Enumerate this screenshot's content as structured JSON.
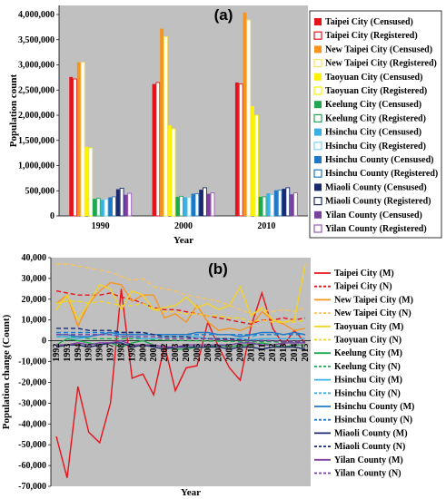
{
  "chart_data": [
    {
      "type": "bar",
      "title": "(a)",
      "xlabel": "Year",
      "ylabel": "Population count",
      "ylim": [
        0,
        4000000
      ],
      "yticks": [
        "0",
        "500,000",
        "1,000,000",
        "1,500,000",
        "2,000,000",
        "2,500,000",
        "3,000,000",
        "3,500,000",
        "4,000,000"
      ],
      "categories": [
        "1990",
        "2000",
        "2010"
      ],
      "grid": false,
      "legend": "right",
      "series": [
        {
          "name": "Taipei City (Censused)",
          "color": "#e8121a",
          "hollow": false,
          "values": [
            2760000,
            2620000,
            2650000
          ]
        },
        {
          "name": "Taipei City (Registered)",
          "color": "#e8121a",
          "hollow": true,
          "values": [
            2720000,
            2650000,
            2620000
          ]
        },
        {
          "name": "New Taipei City (Censused)",
          "color": "#f7941d",
          "hollow": false,
          "values": [
            3050000,
            3720000,
            4040000
          ]
        },
        {
          "name": "New Taipei City (Registered)",
          "color": "#fde15a",
          "hollow": true,
          "values": [
            3050000,
            3560000,
            3890000
          ]
        },
        {
          "name": "Taoyuan City (Censused)",
          "color": "#fff200",
          "hollow": false,
          "values": [
            1370000,
            1800000,
            2180000
          ]
        },
        {
          "name": "Taoyuan City (Registered)",
          "color": "#f2f200",
          "hollow": true,
          "values": [
            1350000,
            1730000,
            2000000
          ]
        },
        {
          "name": "Keelung City (Censused)",
          "color": "#1ea850",
          "hollow": false,
          "values": [
            340000,
            380000,
            380000
          ]
        },
        {
          "name": "Keelung City (Registered)",
          "color": "#1ea850",
          "hollow": true,
          "values": [
            350000,
            390000,
            380000
          ]
        },
        {
          "name": "Hsinchu City (Censused)",
          "color": "#3ab0e4",
          "hollow": false,
          "values": [
            320000,
            370000,
            450000
          ]
        },
        {
          "name": "Hsinchu City (Registered)",
          "color": "#7fd3f7",
          "hollow": true,
          "values": [
            330000,
            370000,
            420000
          ]
        },
        {
          "name": "Hsinchu County (Censused)",
          "color": "#1f78c8",
          "hollow": false,
          "values": [
            370000,
            440000,
            510000
          ]
        },
        {
          "name": "Hsinchu County (Registered)",
          "color": "#1f78c8",
          "hollow": true,
          "values": [
            380000,
            440000,
            510000
          ]
        },
        {
          "name": "Miaoli County (Censused)",
          "color": "#1a2a6c",
          "hollow": false,
          "values": [
            530000,
            520000,
            540000
          ]
        },
        {
          "name": "Miaoli County (Registered)",
          "color": "#1a2a6c",
          "hollow": true,
          "values": [
            550000,
            560000,
            560000
          ]
        },
        {
          "name": "Yilan County (Censused)",
          "color": "#7b3fa0",
          "hollow": false,
          "values": [
            420000,
            440000,
            430000
          ]
        },
        {
          "name": "Yilan County (Registered)",
          "color": "#9b59b6",
          "hollow": true,
          "values": [
            450000,
            460000,
            460000
          ]
        }
      ]
    },
    {
      "type": "line",
      "title": "(b)",
      "xlabel": "Year",
      "ylabel": "Population change (Count)",
      "ylim": [
        -70000,
        40000
      ],
      "yticks": [
        "-70,000",
        "-60,000",
        "-50,000",
        "-40,000",
        "-30,000",
        "-20,000",
        "-10,000",
        "0",
        "10,000",
        "20,000",
        "30,000",
        "40,000"
      ],
      "x": [
        "1992",
        "1993",
        "1994",
        "1995",
        "1996",
        "1997",
        "1998",
        "1999",
        "2000",
        "2001",
        "2002",
        "2003",
        "2004",
        "2005",
        "2006",
        "2007",
        "2008",
        "2009",
        "2010",
        "2011",
        "2012",
        "2013",
        "2014",
        "2015"
      ],
      "grid": false,
      "legend": "right",
      "series": [
        {
          "name": "Taipei City (M)",
          "color": "#e8121a",
          "dash": false,
          "values": [
            -46000,
            -66000,
            -22000,
            -44000,
            -49000,
            -30000,
            25000,
            -18000,
            -16000,
            -26000,
            -2000,
            -24000,
            -13000,
            -12000,
            9000,
            -3000,
            -13000,
            -19000,
            7000,
            23000,
            6000,
            -2000,
            5000,
            -1000
          ]
        },
        {
          "name": "Taipei City (N)",
          "color": "#e8121a",
          "dash": true,
          "values": [
            24000,
            23000,
            22000,
            22000,
            22000,
            23000,
            21000,
            20000,
            18000,
            16000,
            15000,
            15000,
            14000,
            13000,
            12000,
            11000,
            10000,
            9000,
            8000,
            10000,
            10000,
            11000,
            10000,
            11000
          ]
        },
        {
          "name": "New Taipei City (M)",
          "color": "#f7941d",
          "dash": false,
          "values": [
            18000,
            22000,
            7000,
            18000,
            24000,
            28000,
            27000,
            19000,
            22000,
            22000,
            11000,
            13000,
            9000,
            17000,
            9000,
            5000,
            6000,
            5000,
            7000,
            14000,
            10000,
            8000,
            5000,
            6000
          ]
        },
        {
          "name": "New Taipei City (N)",
          "color": "#f7c35a",
          "dash": true,
          "values": [
            37000,
            37000,
            36000,
            35000,
            34000,
            33000,
            31000,
            29000,
            30000,
            26000,
            25000,
            24000,
            22000,
            21000,
            20000,
            19000,
            17000,
            15000,
            13000,
            15000,
            14000,
            15000,
            14000,
            16000
          ]
        },
        {
          "name": "Taoyuan City (M)",
          "color": "#f3d324",
          "dash": false,
          "values": [
            15000,
            22000,
            10000,
            18000,
            27000,
            25000,
            15000,
            24000,
            22000,
            15000,
            16000,
            17000,
            21000,
            16000,
            18000,
            15000,
            17000,
            26000,
            12000,
            16000,
            10000,
            9000,
            10000,
            37000
          ]
        },
        {
          "name": "Taoyuan City (N)",
          "color": "#f3d324",
          "dash": true,
          "values": [
            18000,
            19000,
            19000,
            18000,
            19000,
            18000,
            17000,
            17000,
            18000,
            15000,
            14000,
            14000,
            13000,
            13000,
            12000,
            12000,
            11000,
            11000,
            9000,
            10000,
            9000,
            9000,
            9000,
            10000
          ]
        },
        {
          "name": "Keelung City (M)",
          "color": "#1ea850",
          "dash": false,
          "values": [
            -2000,
            1000,
            0,
            -1000,
            -2000,
            -1000,
            -3000,
            -1000,
            0,
            -2000,
            -3000,
            -4000,
            -4000,
            -3000,
            -3000,
            -2000,
            -3000,
            -2000,
            -2000,
            -1000,
            -2000,
            -3000,
            -2000,
            -2000
          ]
        },
        {
          "name": "Keelung City (N)",
          "color": "#1ea850",
          "dash": true,
          "values": [
            2000,
            2000,
            2000,
            1000,
            1000,
            1000,
            1000,
            1000,
            1000,
            500,
            300,
            200,
            100,
            0,
            -100,
            -200,
            -300,
            -400,
            -600,
            -300,
            -500,
            -700,
            -800,
            -900
          ]
        },
        {
          "name": "Hsinchu City (M)",
          "color": "#3ab0e4",
          "dash": false,
          "values": [
            2000,
            2000,
            1000,
            2000,
            3000,
            3000,
            2000,
            2000,
            1000,
            1000,
            2000,
            2000,
            2000,
            2000,
            1000,
            1000,
            1000,
            1000,
            500,
            1000,
            1000,
            1000,
            1000,
            1000
          ]
        },
        {
          "name": "Hsinchu City (N)",
          "color": "#3ab0e4",
          "dash": true,
          "values": [
            3000,
            3000,
            3000,
            3000,
            3000,
            3000,
            3000,
            3000,
            3000,
            3000,
            3000,
            3000,
            3000,
            3000,
            3000,
            3000,
            3000,
            3000,
            2000,
            3000,
            3000,
            3000,
            3000,
            3000
          ]
        },
        {
          "name": "Hsinchu County (M)",
          "color": "#1f78c8",
          "dash": false,
          "values": [
            3000,
            3000,
            2000,
            2000,
            3000,
            4000,
            3000,
            3000,
            3000,
            3000,
            3000,
            3000,
            3000,
            4000,
            4000,
            3000,
            3000,
            2000,
            3000,
            4000,
            4000,
            3000,
            4000,
            3000
          ]
        },
        {
          "name": "Hsinchu County (N)",
          "color": "#1f78c8",
          "dash": true,
          "values": [
            4000,
            4000,
            4000,
            4000,
            4000,
            4000,
            4000,
            4000,
            4000,
            3000,
            3000,
            3000,
            3000,
            3000,
            3000,
            3000,
            3000,
            3000,
            3000,
            3000,
            3000,
            3000,
            3000,
            3000
          ]
        },
        {
          "name": "Miaoli County (M)",
          "color": "#1a2a6c",
          "dash": false,
          "values": [
            -3000,
            -2000,
            -2000,
            -3000,
            -2000,
            -1000,
            -1000,
            -3000,
            -2000,
            -3000,
            -4000,
            -3000,
            -3000,
            -3000,
            -3000,
            -3000,
            -4000,
            -3000,
            -3000,
            -4000,
            -3000,
            -3000,
            -3000,
            -4000
          ]
        },
        {
          "name": "Miaoli County (N)",
          "color": "#1a2a6c",
          "dash": true,
          "values": [
            6000,
            6000,
            6000,
            5000,
            5000,
            5000,
            4000,
            4000,
            4000,
            3000,
            2000,
            2000,
            2000,
            1000,
            1000,
            1000,
            1000,
            500,
            0,
            0,
            0,
            -200,
            -300,
            -500
          ]
        },
        {
          "name": "Yilan County (M)",
          "color": "#7b3fa0",
          "dash": false,
          "values": [
            -2000,
            -2000,
            -1000,
            -2000,
            -1000,
            -1000,
            0,
            -2000,
            -2000,
            -2000,
            -3000,
            -3000,
            -2000,
            -2000,
            -2000,
            -2000,
            -2000,
            -1000,
            -1000,
            -2000,
            -2000,
            -1000,
            -1000,
            -1000
          ]
        },
        {
          "name": "Yilan County (N)",
          "color": "#7b3fa0",
          "dash": true,
          "values": [
            3000,
            3000,
            3000,
            3000,
            3000,
            3000,
            2000,
            2000,
            2000,
            2000,
            1000,
            1000,
            1000,
            1000,
            1000,
            500,
            500,
            300,
            0,
            200,
            0,
            -200,
            -300,
            -400
          ]
        }
      ]
    }
  ]
}
